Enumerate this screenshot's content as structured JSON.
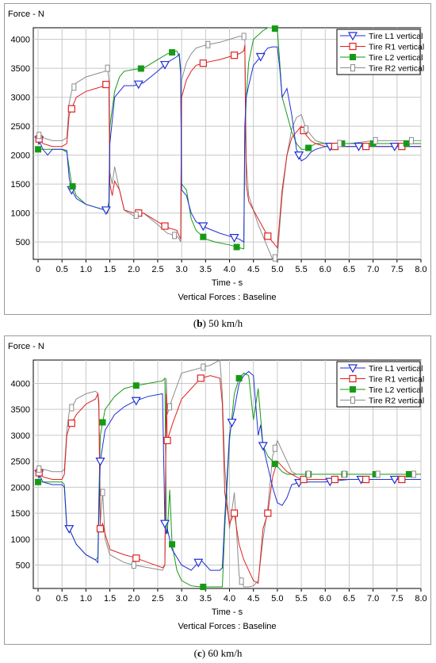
{
  "colors": {
    "L1": "#1f2fd8",
    "R1": "#e02020",
    "L2": "#169a16",
    "R2": "#8c8c8c",
    "grid": "#c8c8c8"
  },
  "charts": [
    {
      "caption_bold": "b",
      "caption_rest": "50 km/h",
      "ylabel": "Force - N",
      "xlabel": "Time - s",
      "subtitle": "Vertical Forces : Baseline",
      "yticks": [
        500,
        1000,
        1500,
        2000,
        2500,
        3000,
        3500,
        4000
      ],
      "ylim": [
        200,
        4200
      ]
    },
    {
      "caption_bold": "c",
      "caption_rest": "60 km/h",
      "ylabel": "Force - N",
      "xlabel": "Time - s",
      "subtitle": "Vertical Forces : Baseline",
      "yticks": [
        500,
        1000,
        1500,
        2000,
        2500,
        3000,
        3500,
        4000
      ],
      "ylim": [
        50,
        4450
      ]
    }
  ],
  "xticks": [
    "0",
    "0.5",
    "1.0",
    "1.5",
    "2.0",
    "2.5",
    "3.0",
    "3.5",
    "4.0",
    "4.5",
    "5.0",
    "5.5",
    "6.0",
    "6.5",
    "7.0",
    "7.5",
    "8.0"
  ],
  "legend": [
    "Tire L1 vertical",
    "Tire R1 vertical",
    "Tire L2 vertical",
    "Tire R2 vertical"
  ],
  "chart_data": [
    {
      "type": "line",
      "title": "Vertical Forces : Baseline",
      "xlabel": "Time - s",
      "ylabel": "Force - N",
      "xlim": [
        -0.1,
        8.0
      ],
      "ylim": [
        200,
        4200
      ],
      "legend_position": "top-right",
      "grid": true,
      "series": [
        {
          "name": "Tire L1 vertical",
          "x": [
            0,
            0.1,
            0.2,
            0.3,
            0.5,
            0.6,
            0.65,
            0.7,
            0.8,
            1.0,
            1.2,
            1.4,
            1.45,
            1.48,
            1.5,
            1.6,
            1.8,
            2.0,
            2.2,
            2.5,
            2.7,
            2.9,
            2.95,
            2.98,
            3.0,
            3.1,
            3.2,
            3.3,
            3.5,
            3.8,
            4.0,
            4.2,
            4.3,
            4.32,
            4.35,
            4.4,
            4.5,
            4.7,
            4.8,
            4.9,
            5.0,
            5.05,
            5.1,
            5.2,
            5.3,
            5.4,
            5.5,
            5.6,
            5.7,
            5.8,
            6.0,
            6.5,
            7.0,
            7.5,
            8.0
          ],
          "y": [
            2300,
            2100,
            2000,
            2100,
            2100,
            2080,
            1600,
            1400,
            1250,
            1150,
            1100,
            1050,
            1050,
            1200,
            2200,
            3000,
            3200,
            3200,
            3250,
            3450,
            3600,
            3700,
            3750,
            3500,
            1400,
            1300,
            1000,
            850,
            750,
            650,
            600,
            550,
            500,
            2500,
            3000,
            3200,
            3550,
            3750,
            3850,
            3870,
            3870,
            3500,
            3000,
            3150,
            2700,
            2100,
            1900,
            1950,
            2050,
            2100,
            2150,
            2150,
            2150,
            2150,
            2150
          ]
        },
        {
          "name": "Tire R1 vertical",
          "x": [
            0,
            0.1,
            0.3,
            0.5,
            0.6,
            0.65,
            0.7,
            0.8,
            1.0,
            1.2,
            1.4,
            1.45,
            1.48,
            1.5,
            1.55,
            1.6,
            1.7,
            1.8,
            2.0,
            2.2,
            2.5,
            2.7,
            2.9,
            2.95,
            2.98,
            3.0,
            3.1,
            3.2,
            3.3,
            3.5,
            3.8,
            4.0,
            4.2,
            4.3,
            4.32,
            4.35,
            4.4,
            4.6,
            4.8,
            4.9,
            5.0,
            5.1,
            5.2,
            5.3,
            5.4,
            5.5,
            5.6,
            5.7,
            5.8,
            6.0,
            6.5,
            7.0,
            7.5,
            8.0
          ],
          "y": [
            2300,
            2200,
            2150,
            2150,
            2200,
            2700,
            2800,
            3000,
            3100,
            3150,
            3200,
            3250,
            3150,
            1500,
            1300,
            1550,
            1400,
            1050,
            1000,
            1000,
            850,
            750,
            700,
            600,
            550,
            3000,
            3300,
            3450,
            3550,
            3600,
            3650,
            3700,
            3750,
            3800,
            3900,
            1500,
            1200,
            900,
            600,
            500,
            400,
            1400,
            2000,
            2300,
            2400,
            2500,
            2350,
            2250,
            2200,
            2150,
            2150,
            2150,
            2150,
            2150
          ]
        },
        {
          "name": "Tire L2 vertical",
          "x": [
            0,
            0.1,
            0.3,
            0.5,
            0.6,
            0.7,
            0.8,
            1.0,
            1.2,
            1.4,
            1.45,
            1.48,
            1.5,
            1.6,
            1.7,
            1.8,
            2.0,
            2.2,
            2.5,
            2.7,
            2.9,
            2.95,
            2.98,
            3.0,
            3.1,
            3.2,
            3.3,
            3.5,
            3.7,
            4.0,
            4.2,
            4.3,
            4.32,
            4.35,
            4.4,
            4.5,
            4.7,
            4.8,
            4.9,
            5.0,
            5.05,
            5.1,
            5.2,
            5.3,
            5.4,
            5.5,
            5.6,
            5.7,
            5.8,
            6.0,
            6.5,
            7.0,
            7.5,
            8.0
          ],
          "y": [
            2100,
            2100,
            2100,
            2100,
            2050,
            1500,
            1300,
            1150,
            1100,
            1050,
            1000,
            1100,
            2500,
            3100,
            3350,
            3450,
            3480,
            3500,
            3650,
            3750,
            3800,
            3700,
            3400,
            1500,
            1400,
            900,
            700,
            550,
            500,
            450,
            400,
            380,
            2200,
            3000,
            3600,
            4000,
            4150,
            4200,
            4200,
            4170,
            3600,
            3000,
            2700,
            2400,
            2200,
            2100,
            2100,
            2150,
            2200,
            2200,
            2200,
            2200,
            2200,
            2200
          ]
        },
        {
          "name": "Tire R2 vertical",
          "x": [
            0,
            0.1,
            0.3,
            0.5,
            0.6,
            0.65,
            0.7,
            0.8,
            1.0,
            1.2,
            1.4,
            1.45,
            1.48,
            1.5,
            1.55,
            1.6,
            1.7,
            1.8,
            2.0,
            2.2,
            2.5,
            2.7,
            2.9,
            2.95,
            2.98,
            3.0,
            3.1,
            3.2,
            3.3,
            3.5,
            3.8,
            4.0,
            4.2,
            4.3,
            4.32,
            4.35,
            4.4,
            4.6,
            4.8,
            4.9,
            5.0,
            5.1,
            5.2,
            5.3,
            5.4,
            5.5,
            5.6,
            5.7,
            5.8,
            6.0,
            6.5,
            7.0,
            7.5,
            8.0
          ],
          "y": [
            2350,
            2300,
            2250,
            2250,
            2300,
            2900,
            3100,
            3250,
            3350,
            3400,
            3450,
            3500,
            3300,
            1700,
            1500,
            1800,
            1400,
            1050,
            950,
            1000,
            800,
            650,
            600,
            550,
            500,
            3300,
            3600,
            3750,
            3850,
            3900,
            3950,
            4000,
            4050,
            4050,
            4050,
            1900,
            1300,
            800,
            400,
            200,
            250,
            1300,
            2000,
            2450,
            2650,
            2700,
            2450,
            2350,
            2250,
            2200,
            2200,
            2250,
            2250,
            2250
          ]
        }
      ]
    },
    {
      "type": "line",
      "title": "Vertical Forces : Baseline",
      "xlabel": "Time - s",
      "ylabel": "Force - N",
      "xlim": [
        -0.1,
        8.0
      ],
      "ylim": [
        50,
        4450
      ],
      "legend_position": "top-right",
      "grid": true,
      "series": [
        {
          "name": "Tire L1 vertical",
          "x": [
            0,
            0.1,
            0.3,
            0.5,
            0.55,
            0.6,
            0.65,
            0.8,
            1.0,
            1.2,
            1.25,
            1.27,
            1.3,
            1.4,
            1.6,
            1.8,
            2.0,
            2.3,
            2.6,
            2.65,
            2.68,
            2.7,
            2.8,
            3.0,
            3.2,
            3.4,
            3.6,
            3.8,
            3.85,
            3.9,
            4.0,
            4.1,
            4.2,
            4.3,
            4.4,
            4.5,
            4.6,
            4.65,
            4.7,
            4.8,
            4.9,
            5.0,
            5.1,
            5.2,
            5.3,
            5.5,
            6.0,
            6.5,
            7.0,
            7.5,
            8.0
          ],
          "y": [
            2300,
            2100,
            2050,
            2050,
            2000,
            1200,
            1200,
            900,
            700,
            600,
            550,
            1500,
            2500,
            3100,
            3400,
            3550,
            3650,
            3750,
            3800,
            1300,
            1100,
            1200,
            800,
            500,
            400,
            600,
            400,
            400,
            450,
            1400,
            3000,
            3500,
            4000,
            4150,
            4230,
            4150,
            3000,
            3200,
            2800,
            2400,
            2000,
            1700,
            1650,
            1800,
            2050,
            2100,
            2100,
            2150,
            2150,
            2150,
            2150
          ]
        },
        {
          "name": "Tire R1 vertical",
          "x": [
            0,
            0.1,
            0.3,
            0.5,
            0.55,
            0.6,
            0.65,
            0.8,
            1.0,
            1.2,
            1.25,
            1.27,
            1.3,
            1.35,
            1.4,
            1.5,
            1.8,
            2.0,
            2.3,
            2.6,
            2.65,
            2.68,
            2.7,
            2.8,
            3.0,
            3.2,
            3.4,
            3.6,
            3.8,
            3.85,
            3.9,
            4.0,
            4.1,
            4.2,
            4.3,
            4.4,
            4.5,
            4.6,
            4.7,
            4.8,
            4.9,
            5.0,
            5.1,
            5.2,
            5.3,
            5.4,
            5.5,
            6.0,
            6.5,
            7.0,
            7.5,
            8.0
          ],
          "y": [
            2300,
            2200,
            2150,
            2150,
            2250,
            3000,
            3150,
            3400,
            3600,
            3700,
            3800,
            3650,
            1200,
            1300,
            1100,
            800,
            700,
            650,
            550,
            450,
            500,
            3800,
            2900,
            3200,
            3700,
            3900,
            4100,
            4150,
            4100,
            3600,
            1900,
            1300,
            1500,
            900,
            600,
            400,
            200,
            150,
            1200,
            1500,
            2200,
            2500,
            2400,
            2300,
            2250,
            2200,
            2150,
            2150,
            2150,
            2150,
            2150,
            2150
          ]
        },
        {
          "name": "Tire L2 vertical",
          "x": [
            0,
            0.1,
            0.3,
            0.5,
            0.55,
            0.6,
            0.65,
            0.8,
            1.0,
            1.2,
            1.25,
            1.27,
            1.3,
            1.4,
            1.6,
            1.8,
            2.0,
            2.3,
            2.6,
            2.65,
            2.68,
            2.7,
            2.75,
            2.8,
            2.9,
            3.0,
            3.2,
            3.4,
            3.6,
            3.8,
            3.85,
            3.9,
            4.0,
            4.1,
            4.2,
            4.3,
            4.4,
            4.5,
            4.6,
            4.7,
            4.8,
            4.9,
            5.0,
            5.1,
            5.2,
            5.3,
            5.5,
            6.0,
            6.5,
            7.0,
            7.5,
            8.0
          ],
          "y": [
            2100,
            2100,
            2100,
            2100,
            2050,
            1250,
            1200,
            900,
            700,
            600,
            650,
            1800,
            3000,
            3500,
            3750,
            3900,
            3950,
            4000,
            4050,
            4100,
            1300,
            1100,
            1950,
            900,
            400,
            200,
            100,
            80,
            80,
            80,
            80,
            1200,
            2900,
            3800,
            4100,
            4200,
            4150,
            3300,
            3900,
            2800,
            2600,
            2500,
            2400,
            2300,
            2250,
            2250,
            2250,
            2250,
            2250,
            2250,
            2250,
            2250
          ]
        },
        {
          "name": "Tire R2 vertical",
          "x": [
            0,
            0.1,
            0.3,
            0.5,
            0.55,
            0.6,
            0.65,
            0.8,
            1.0,
            1.2,
            1.25,
            1.27,
            1.3,
            1.35,
            1.4,
            1.5,
            1.8,
            2.0,
            2.3,
            2.6,
            2.65,
            2.68,
            2.7,
            2.8,
            3.0,
            3.2,
            3.4,
            3.6,
            3.8,
            3.85,
            3.9,
            4.0,
            4.1,
            4.2,
            4.3,
            4.4,
            4.5,
            4.6,
            4.7,
            4.8,
            4.9,
            5.0,
            5.1,
            5.2,
            5.3,
            5.4,
            5.5,
            6.0,
            6.5,
            7.0,
            7.5,
            8.0
          ],
          "y": [
            2350,
            2350,
            2300,
            2300,
            2350,
            3100,
            3450,
            3700,
            3800,
            3850,
            3800,
            3500,
            1300,
            1900,
            1000,
            700,
            550,
            500,
            450,
            400,
            500,
            4100,
            3400,
            3700,
            4200,
            4250,
            4300,
            4350,
            4450,
            3800,
            2400,
            1200,
            1900,
            300,
            80,
            80,
            100,
            200,
            1000,
            1600,
            2600,
            2900,
            2700,
            2500,
            2300,
            2250,
            2250,
            2250,
            2250,
            2250,
            2250,
            2250
          ]
        }
      ]
    }
  ]
}
